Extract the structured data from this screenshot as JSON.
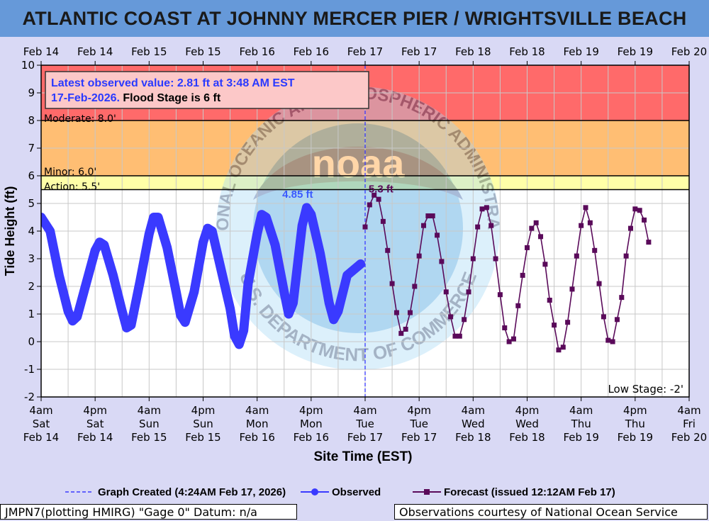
{
  "page": {
    "title": "ATLANTIC COAST AT JOHNNY MERCER PIER / WRIGHTSVILLE BEACH"
  },
  "chart_data": {
    "type": "line",
    "ylabel": "Tide Height (ft)",
    "xlabel": "Site Time (EST)",
    "ylim": [
      -2,
      10
    ],
    "yticks": [
      -2,
      -1,
      0,
      1,
      2,
      3,
      4,
      5,
      6,
      7,
      8,
      9,
      10
    ],
    "top_ticks": [
      "Feb 14",
      "Feb 14",
      "Feb 15",
      "Feb 15",
      "Feb 16",
      "Feb 16",
      "Feb 17",
      "Feb 17",
      "Feb 18",
      "Feb 18",
      "Feb 19",
      "Feb 19",
      "Feb 20"
    ],
    "bottom_ticks": [
      {
        "time": "4am",
        "day": "Sat",
        "date": "Feb 14"
      },
      {
        "time": "4pm",
        "day": "Sat",
        "date": "Feb 14"
      },
      {
        "time": "4am",
        "day": "Sun",
        "date": "Feb 15"
      },
      {
        "time": "4pm",
        "day": "Sun",
        "date": "Feb 15"
      },
      {
        "time": "4am",
        "day": "Mon",
        "date": "Feb 16"
      },
      {
        "time": "4pm",
        "day": "Mon",
        "date": "Feb 16"
      },
      {
        "time": "4am",
        "day": "Tue",
        "date": "Feb 17"
      },
      {
        "time": "4pm",
        "day": "Tue",
        "date": "Feb 17"
      },
      {
        "time": "4am",
        "day": "Wed",
        "date": "Feb 18"
      },
      {
        "time": "4pm",
        "day": "Wed",
        "date": "Feb 18"
      },
      {
        "time": "4am",
        "day": "Thu",
        "date": "Feb 19"
      },
      {
        "time": "4pm",
        "day": "Thu",
        "date": "Feb 19"
      },
      {
        "time": "4am",
        "day": "Fri",
        "date": "Feb 20"
      }
    ],
    "stages": {
      "major": {
        "from": 8,
        "to": 10,
        "color": "#ff6a6a"
      },
      "moderate": {
        "from": 6,
        "to": 8,
        "color": "#ffbe73",
        "label": "Moderate: 8.0'"
      },
      "minor": {
        "from": 5.5,
        "to": 6,
        "color": "#ffffa8",
        "label": "Minor: 6.0'"
      },
      "action": {
        "value": 5.5,
        "label": "Action: 5.5'"
      },
      "low_stage_label": "Low Stage: -2'"
    },
    "annotation": {
      "line1": "Latest observed value: 2.81 ft at 3:48 AM EST",
      "line2_blue": "17-Feb-2026.",
      "line2_black": " Flood Stage is 6 ft"
    },
    "peak_labels": {
      "observed": {
        "text": "4.85 ft",
        "hour": 57,
        "value": 4.85
      },
      "forecast": {
        "text": "5.3 ft",
        "hour": 73,
        "value": 5.3
      }
    },
    "now_hour": 72,
    "series": [
      {
        "name": "Observed",
        "color": "#3a3aff",
        "points": [
          [
            0,
            4.5
          ],
          [
            2,
            4.0
          ],
          [
            4,
            2.4
          ],
          [
            6,
            1.1
          ],
          [
            7,
            0.75
          ],
          [
            8,
            0.9
          ],
          [
            10,
            2.1
          ],
          [
            12,
            3.3
          ],
          [
            13,
            3.6
          ],
          [
            14,
            3.5
          ],
          [
            16,
            2.4
          ],
          [
            18,
            1.1
          ],
          [
            19,
            0.5
          ],
          [
            20,
            0.6
          ],
          [
            22,
            2.2
          ],
          [
            24,
            3.9
          ],
          [
            25,
            4.5
          ],
          [
            26,
            4.5
          ],
          [
            28,
            3.4
          ],
          [
            30,
            1.8
          ],
          [
            31,
            0.95
          ],
          [
            32,
            0.7
          ],
          [
            34,
            1.8
          ],
          [
            36,
            3.6
          ],
          [
            37,
            4.1
          ],
          [
            38,
            4.0
          ],
          [
            40,
            2.6
          ],
          [
            42,
            1.2
          ],
          [
            43,
            0.2
          ],
          [
            44,
            -0.1
          ],
          [
            45,
            0.4
          ],
          [
            46,
            2.1
          ],
          [
            48,
            3.9
          ],
          [
            49,
            4.6
          ],
          [
            50,
            4.5
          ],
          [
            52,
            3.5
          ],
          [
            54,
            1.8
          ],
          [
            55,
            1.0
          ],
          [
            56,
            1.4
          ],
          [
            57,
            2.8
          ],
          [
            58,
            4.2
          ],
          [
            59,
            4.85
          ],
          [
            60,
            4.6
          ],
          [
            62,
            3.2
          ],
          [
            64,
            1.4
          ],
          [
            65,
            0.8
          ],
          [
            66,
            1.1
          ],
          [
            68,
            2.4
          ],
          [
            71,
            2.81
          ]
        ]
      },
      {
        "name": "Forecast",
        "color": "#5a0a5a",
        "points": [
          [
            72,
            4.15
          ],
          [
            73,
            4.95
          ],
          [
            74,
            5.3
          ],
          [
            75,
            5.15
          ],
          [
            76,
            4.35
          ],
          [
            77,
            3.3
          ],
          [
            78,
            2.1
          ],
          [
            79,
            1.05
          ],
          [
            80,
            0.3
          ],
          [
            81,
            0.45
          ],
          [
            82,
            1.05
          ],
          [
            83,
            2.0
          ],
          [
            84,
            3.1
          ],
          [
            85,
            4.2
          ],
          [
            86,
            4.55
          ],
          [
            87,
            4.55
          ],
          [
            88,
            3.85
          ],
          [
            89,
            2.9
          ],
          [
            90,
            1.8
          ],
          [
            91,
            0.9
          ],
          [
            92,
            0.2
          ],
          [
            93,
            0.2
          ],
          [
            94,
            0.8
          ],
          [
            95,
            1.8
          ],
          [
            96,
            3.0
          ],
          [
            97,
            4.15
          ],
          [
            98,
            4.8
          ],
          [
            99,
            4.85
          ],
          [
            100,
            4.2
          ],
          [
            101,
            3.0
          ],
          [
            102,
            1.7
          ],
          [
            103,
            0.5
          ],
          [
            104,
            0.0
          ],
          [
            105,
            0.1
          ],
          [
            106,
            1.3
          ],
          [
            107,
            2.4
          ],
          [
            108,
            3.4
          ],
          [
            109,
            4.1
          ],
          [
            110,
            4.3
          ],
          [
            111,
            3.8
          ],
          [
            112,
            2.8
          ],
          [
            113,
            1.5
          ],
          [
            114,
            0.6
          ],
          [
            115,
            -0.3
          ],
          [
            116,
            -0.2
          ],
          [
            117,
            0.7
          ],
          [
            118,
            1.9
          ],
          [
            119,
            3.1
          ],
          [
            120,
            4.2
          ],
          [
            121,
            4.85
          ],
          [
            122,
            4.3
          ],
          [
            123,
            3.3
          ],
          [
            124,
            2.1
          ],
          [
            125,
            0.9
          ],
          [
            126,
            0.05
          ],
          [
            127,
            0.0
          ],
          [
            128,
            0.8
          ],
          [
            129,
            1.6
          ],
          [
            130,
            3.1
          ],
          [
            131,
            4.1
          ],
          [
            132,
            4.8
          ],
          [
            133,
            4.75
          ],
          [
            134,
            4.4
          ],
          [
            135,
            3.6
          ]
        ]
      }
    ],
    "legend": {
      "created": "Graph Created (4:24AM Feb 17, 2026)",
      "observed": "Observed",
      "forecast": "Forecast (issued 12:12AM Feb 17)"
    },
    "watermark": {
      "top_text": "NATIONAL OCEANIC AND ATMOSPHERIC ADMINISTRATION",
      "bottom_text": "U.S. DEPARTMENT OF COMMERCE",
      "center_text": "noaa"
    }
  },
  "footer": {
    "left": "JMPN7(plotting HMIRG) \"Gage 0\" Datum: n/a",
    "right": "Observations courtesy of National Ocean Service"
  }
}
